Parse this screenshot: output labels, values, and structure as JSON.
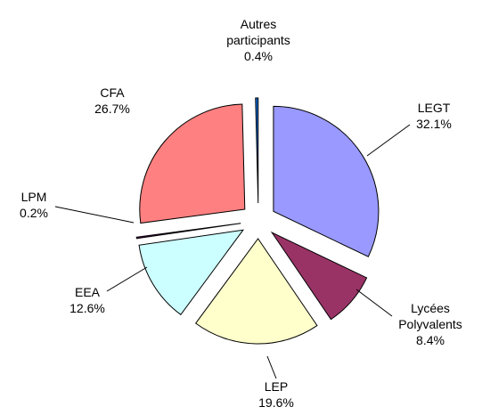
{
  "chart_data": {
    "type": "pie",
    "categories": [
      "LEGT",
      "Lycées Polyvalents",
      "LEP",
      "EEA",
      "LPM",
      "CFA",
      "Autres participants"
    ],
    "values": [
      32.1,
      8.4,
      19.6,
      12.6,
      0.2,
      26.7,
      0.4
    ],
    "value_labels": [
      "32.1%",
      "8.4%",
      "19.6%",
      "12.6%",
      "0.2%",
      "26.7%",
      "0.4%"
    ],
    "colors": [
      "#9999ff",
      "#993366",
      "#ffffcc",
      "#ccffff",
      "#660066",
      "#ff8080",
      "#0066cc"
    ]
  }
}
